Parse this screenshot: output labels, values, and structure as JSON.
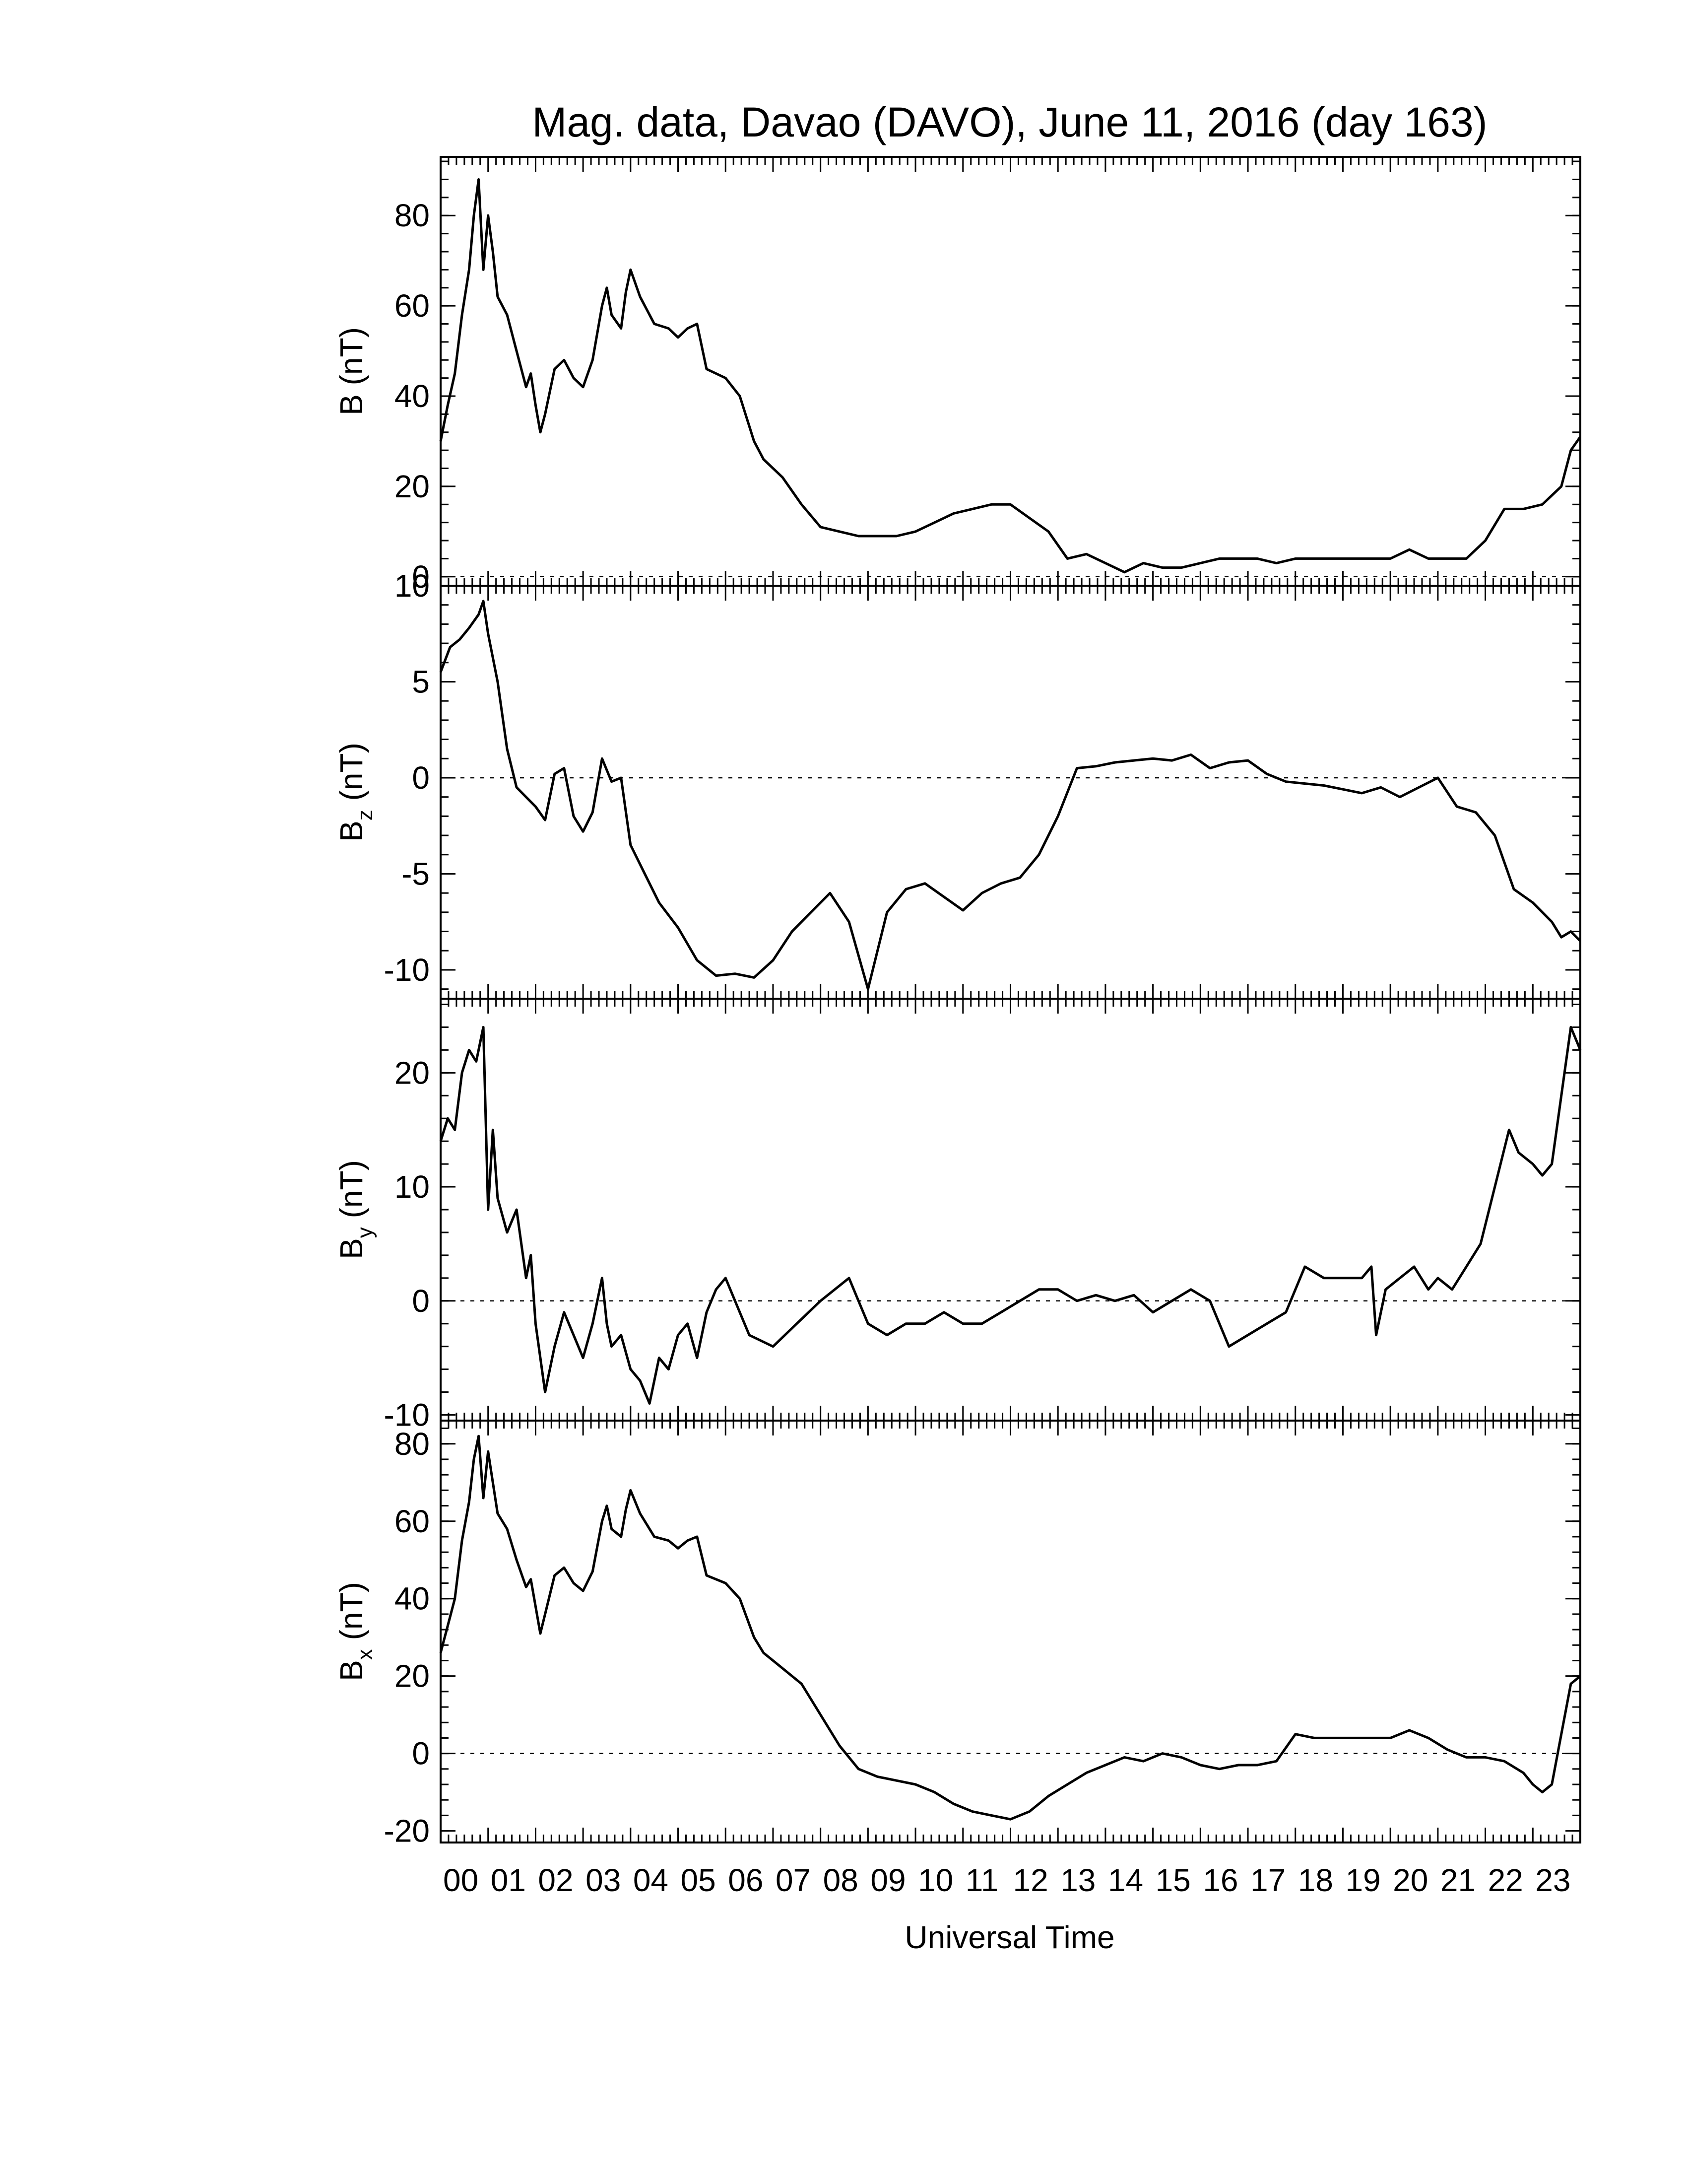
{
  "chart_data": {
    "type": "line",
    "title": "Mag. data, Davao (DAVO), June 11, 2016 (day 163)",
    "xlabel": "Universal Time",
    "xlim": [
      0,
      24
    ],
    "x_tick_labels": [
      "00",
      "01",
      "02",
      "03",
      "04",
      "05",
      "06",
      "07",
      "08",
      "09",
      "10",
      "11",
      "12",
      "13",
      "14",
      "15",
      "16",
      "17",
      "18",
      "19",
      "20",
      "21",
      "22",
      "23"
    ],
    "panels": [
      {
        "id": "b",
        "ylabel": {
          "main": "B",
          "sub": "",
          "unit": "(nT)"
        },
        "ylim": [
          -2,
          93
        ],
        "y_ticks": [
          0,
          20,
          40,
          60,
          80
        ],
        "y_tick_labels": [
          "0",
          "20",
          "40",
          "60",
          "80"
        ],
        "zero_line": true,
        "series": {
          "x": [
            0,
            0.15,
            0.3,
            0.45,
            0.6,
            0.7,
            0.8,
            0.9,
            1.0,
            1.1,
            1.2,
            1.4,
            1.6,
            1.8,
            1.9,
            2.0,
            2.1,
            2.2,
            2.4,
            2.6,
            2.8,
            3.0,
            3.2,
            3.4,
            3.5,
            3.6,
            3.8,
            3.9,
            4.0,
            4.2,
            4.5,
            4.8,
            5.0,
            5.2,
            5.4,
            5.6,
            5.8,
            6.0,
            6.3,
            6.6,
            6.8,
            7.2,
            7.6,
            8.0,
            8.4,
            8.8,
            9.2,
            9.6,
            10.0,
            10.4,
            10.8,
            11.2,
            11.6,
            12.0,
            12.4,
            12.8,
            13.2,
            13.6,
            14.0,
            14.4,
            14.8,
            15.2,
            15.6,
            16.0,
            16.4,
            16.8,
            17.2,
            17.6,
            18.0,
            18.4,
            18.8,
            19.2,
            19.6,
            20.0,
            20.4,
            20.8,
            21.2,
            21.6,
            22.0,
            22.4,
            22.8,
            23.2,
            23.6,
            23.8,
            24.0
          ],
          "y": [
            30,
            38,
            45,
            58,
            68,
            80,
            88,
            68,
            80,
            72,
            62,
            58,
            50,
            42,
            45,
            38,
            32,
            36,
            46,
            48,
            44,
            42,
            48,
            60,
            64,
            58,
            55,
            63,
            68,
            62,
            56,
            55,
            53,
            55,
            56,
            46,
            45,
            44,
            40,
            30,
            26,
            22,
            16,
            11,
            10,
            9,
            9,
            9,
            10,
            12,
            14,
            15,
            16,
            16,
            13,
            10,
            4,
            5,
            3,
            1,
            3,
            2,
            2,
            3,
            4,
            4,
            4,
            3,
            4,
            4,
            4,
            4,
            4,
            4,
            6,
            4,
            4,
            4,
            8,
            15,
            15,
            16,
            20,
            28,
            31
          ]
        }
      },
      {
        "id": "bz",
        "ylabel": {
          "main": "B",
          "sub": "z",
          "unit": "(nT)"
        },
        "ylim": [
          -11.5,
          10
        ],
        "y_ticks": [
          -10,
          -5,
          0,
          5,
          10
        ],
        "y_tick_labels": [
          "-10",
          "-5",
          "0",
          "5",
          "10"
        ],
        "zero_line": true,
        "series": {
          "x": [
            0,
            0.2,
            0.4,
            0.6,
            0.8,
            0.9,
            1.0,
            1.2,
            1.4,
            1.6,
            1.8,
            2.0,
            2.2,
            2.4,
            2.6,
            2.8,
            3.0,
            3.2,
            3.4,
            3.6,
            3.8,
            4.0,
            4.3,
            4.6,
            5.0,
            5.4,
            5.8,
            6.2,
            6.6,
            7.0,
            7.4,
            7.8,
            8.2,
            8.6,
            9.0,
            9.4,
            9.8,
            10.2,
            10.6,
            11.0,
            11.4,
            11.8,
            12.2,
            12.6,
            13.0,
            13.4,
            13.8,
            14.2,
            14.6,
            15.0,
            15.4,
            15.8,
            16.2,
            16.6,
            17.0,
            17.4,
            17.8,
            18.2,
            18.6,
            19.0,
            19.4,
            19.8,
            20.2,
            20.6,
            21.0,
            21.4,
            21.8,
            22.2,
            22.6,
            23.0,
            23.4,
            23.6,
            23.8,
            24.0
          ],
          "y": [
            5.5,
            6.8,
            7.2,
            7.8,
            8.5,
            9.2,
            7.5,
            5,
            1.5,
            -0.5,
            -1,
            -1.5,
            -2.2,
            0.2,
            0.5,
            -2,
            -2.8,
            -1.8,
            1,
            -0.2,
            0,
            -3.5,
            -5,
            -6.5,
            -7.8,
            -9.5,
            -10.3,
            -10.2,
            -10.4,
            -9.5,
            -8,
            -7,
            -6,
            -7.5,
            -11,
            -7,
            -5.8,
            -5.5,
            -6.2,
            -6.9,
            -6,
            -5.5,
            -5.2,
            -4,
            -2,
            0.5,
            0.6,
            0.8,
            0.9,
            1,
            0.9,
            1.2,
            0.5,
            0.8,
            0.9,
            0.2,
            -0.2,
            -0.3,
            -0.4,
            -0.6,
            -0.8,
            -0.5,
            -1,
            -0.5,
            0,
            -1.5,
            -1.8,
            -3,
            -5.8,
            -6.5,
            -7.5,
            -8.3,
            -8,
            -8.5
          ]
        }
      },
      {
        "id": "by",
        "ylabel": {
          "main": "B",
          "sub": "y",
          "unit": "(nT)"
        },
        "ylim": [
          -10.5,
          26.5
        ],
        "y_ticks": [
          -10,
          0,
          10,
          20
        ],
        "y_tick_labels": [
          "-10",
          "0",
          "10",
          "20"
        ],
        "zero_line": true,
        "series": {
          "x": [
            0,
            0.15,
            0.3,
            0.45,
            0.6,
            0.75,
            0.9,
            1.0,
            1.1,
            1.2,
            1.4,
            1.6,
            1.8,
            1.9,
            2.0,
            2.1,
            2.2,
            2.4,
            2.6,
            2.8,
            3.0,
            3.2,
            3.4,
            3.5,
            3.6,
            3.8,
            4.0,
            4.2,
            4.4,
            4.6,
            4.8,
            5.0,
            5.2,
            5.4,
            5.6,
            5.8,
            6.0,
            6.2,
            6.5,
            7.0,
            7.5,
            8.0,
            8.3,
            8.6,
            8.8,
            9.0,
            9.4,
            9.8,
            10.2,
            10.6,
            11.0,
            11.4,
            11.8,
            12.2,
            12.6,
            13.0,
            13.4,
            13.8,
            14.2,
            14.6,
            15.0,
            15.4,
            15.8,
            16.2,
            16.6,
            17.0,
            17.4,
            17.8,
            18.2,
            18.6,
            19.0,
            19.4,
            19.6,
            19.7,
            19.9,
            20.2,
            20.5,
            20.8,
            21.0,
            21.3,
            21.6,
            21.9,
            22.2,
            22.5,
            22.7,
            23.0,
            23.2,
            23.4,
            23.6,
            23.8,
            24.0
          ],
          "y": [
            14,
            16,
            15,
            20,
            22,
            21,
            24,
            8,
            15,
            9,
            6,
            8,
            2,
            4,
            -2,
            -5,
            -8,
            -4,
            -1,
            -3,
            -5,
            -2,
            2,
            -2,
            -4,
            -3,
            -6,
            -7,
            -9,
            -5,
            -6,
            -3,
            -2,
            -5,
            -1,
            1,
            2,
            0,
            -3,
            -4,
            -2,
            0,
            1,
            2,
            0,
            -2,
            -3,
            -2,
            -2,
            -1,
            -2,
            -2,
            -1,
            0,
            1,
            1,
            0,
            0.5,
            0,
            0.5,
            -1,
            0,
            1,
            0,
            -4,
            -3,
            -2,
            -1,
            3,
            2,
            2,
            2,
            3,
            -3,
            1,
            2,
            3,
            1,
            2,
            1,
            3,
            5,
            10,
            15,
            13,
            12,
            11,
            12,
            18,
            24,
            22
          ]
        }
      },
      {
        "id": "bx",
        "ylabel": {
          "main": "B",
          "sub": "x",
          "unit": "(nT)"
        },
        "ylim": [
          -23,
          86
        ],
        "y_ticks": [
          -20,
          0,
          20,
          40,
          60,
          80
        ],
        "y_tick_labels": [
          "-20",
          "0",
          "20",
          "40",
          "60",
          "80"
        ],
        "zero_line": true,
        "series": {
          "x": [
            0,
            0.15,
            0.3,
            0.45,
            0.6,
            0.7,
            0.8,
            0.9,
            1.0,
            1.1,
            1.2,
            1.4,
            1.6,
            1.8,
            1.9,
            2.0,
            2.1,
            2.2,
            2.4,
            2.6,
            2.8,
            3.0,
            3.2,
            3.4,
            3.5,
            3.6,
            3.8,
            3.9,
            4.0,
            4.2,
            4.5,
            4.8,
            5.0,
            5.2,
            5.4,
            5.6,
            5.8,
            6.0,
            6.3,
            6.6,
            6.8,
            7.2,
            7.6,
            8.0,
            8.4,
            8.8,
            9.2,
            9.6,
            10.0,
            10.4,
            10.8,
            11.2,
            11.6,
            12.0,
            12.4,
            12.8,
            13.2,
            13.6,
            14.0,
            14.4,
            14.8,
            15.2,
            15.6,
            16.0,
            16.4,
            16.8,
            17.2,
            17.6,
            18.0,
            18.4,
            18.8,
            19.2,
            19.6,
            20.0,
            20.4,
            20.8,
            21.2,
            21.6,
            22.0,
            22.4,
            22.8,
            23.0,
            23.2,
            23.4,
            23.6,
            23.8,
            24.0
          ],
          "y": [
            26,
            33,
            40,
            55,
            65,
            76,
            82,
            66,
            78,
            70,
            62,
            58,
            50,
            43,
            45,
            38,
            31,
            36,
            46,
            48,
            44,
            42,
            47,
            60,
            64,
            58,
            56,
            63,
            68,
            62,
            56,
            55,
            53,
            55,
            56,
            46,
            45,
            44,
            40,
            30,
            26,
            22,
            18,
            10,
            2,
            -4,
            -6,
            -7,
            -8,
            -10,
            -13,
            -15,
            -16,
            -17,
            -15,
            -11,
            -8,
            -5,
            -3,
            -1,
            -2,
            0,
            -1,
            -3,
            -4,
            -3,
            -3,
            -2,
            5,
            4,
            4,
            4,
            4,
            4,
            6,
            4,
            1,
            -1,
            -1,
            -2,
            -5,
            -8,
            -10,
            -8,
            5,
            18,
            20
          ]
        }
      }
    ]
  }
}
